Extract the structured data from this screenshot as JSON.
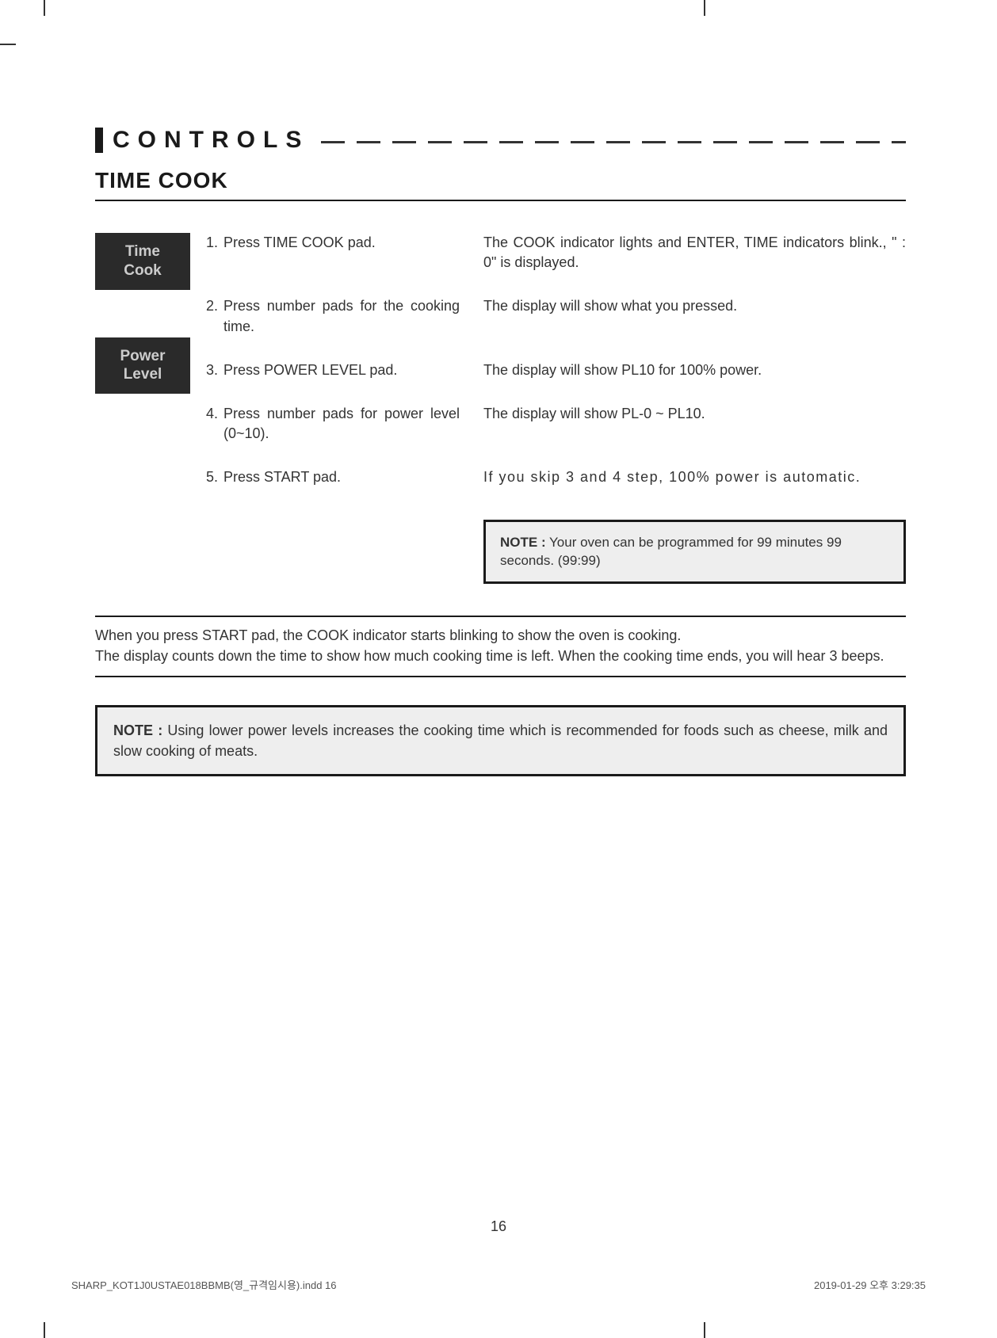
{
  "section_title": "CONTROLS",
  "subsection_title": "TIME COOK",
  "badges": {
    "time_cook": "Time\nCook",
    "power_level": "Power\nLevel"
  },
  "steps": [
    {
      "num": "1.",
      "left": "Press TIME COOK pad.",
      "right": "The COOK indicator lights and ENTER, TIME indicators blink., \" : 0\" is displayed."
    },
    {
      "num": "2.",
      "left": "Press number pads for the cooking time.",
      "right": "The display will show what you pressed."
    },
    {
      "num": "3.",
      "left": "Press POWER LEVEL pad.",
      "right": "The display will show PL10 for 100% power."
    },
    {
      "num": "4.",
      "left": "Press number pads for power level (0~10).",
      "right": "The display will show PL-0 ~ PL10."
    },
    {
      "num": "5.",
      "left": "Press START pad.",
      "right": "If you skip 3 and 4 step, 100% power is automatic."
    }
  ],
  "note_right": {
    "label": "NOTE :",
    "text": " Your oven can be programmed for 99 minutes 99 seconds. (99:99)"
  },
  "body_paragraph": "When you press START pad, the COOK indicator starts blinking to show the oven is cooking.\nThe display counts down the time to show how much cooking time is left. When the cooking time ends, you will hear 3 beeps.",
  "note_wide": {
    "label": "NOTE :",
    "text": " Using lower power levels increases the cooking time which is recommended for foods such as cheese, milk and slow cooking of meats."
  },
  "page_number": "16",
  "footer_left": "SHARP_KOT1J0USTAE018BBMB(영_규격임시용).indd   16",
  "footer_right": "2019-01-29   오후 3:29:35"
}
